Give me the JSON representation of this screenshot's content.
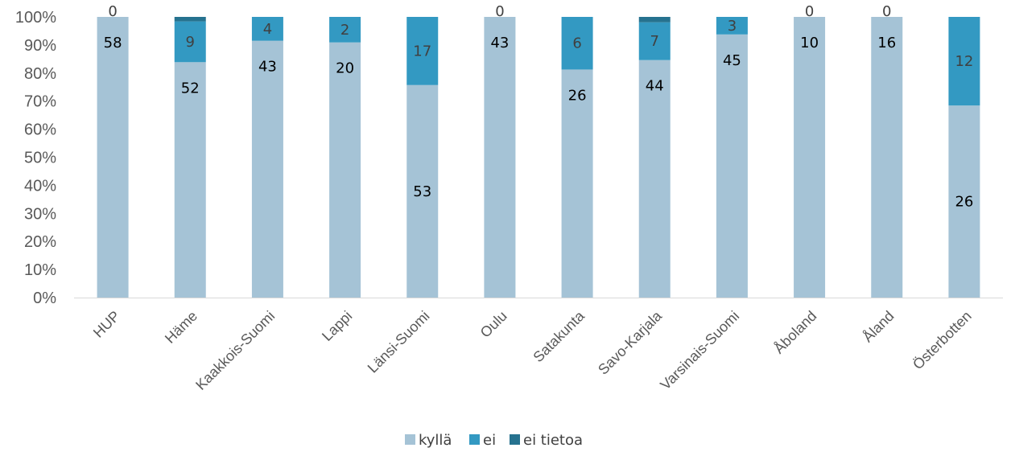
{
  "chart_data": {
    "type": "bar",
    "stacked": "percent",
    "categories": [
      "HUP",
      "Häme",
      "Kaakkois-Suomi",
      "Lappi",
      "Länsi-Suomi",
      "Oulu",
      "Satakunta",
      "Savo-Karjala",
      "Varsinais-Suomi",
      "Åboland",
      "Åland",
      "Österbotten"
    ],
    "series": [
      {
        "name": "kyllä",
        "color": "#a5c3d6",
        "label_color": "#000000",
        "values": [
          58,
          52,
          43,
          20,
          53,
          43,
          26,
          44,
          45,
          10,
          16,
          26
        ]
      },
      {
        "name": "ei",
        "color": "#3399c2",
        "label_color": "#404040",
        "values": [
          0,
          9,
          4,
          2,
          17,
          0,
          6,
          7,
          3,
          0,
          0,
          12
        ]
      },
      {
        "name": "ei tietoa",
        "color": "#26728f",
        "label_color": "#404040",
        "values": [
          0,
          1,
          0,
          0,
          0,
          0,
          0,
          1,
          0,
          0,
          0,
          0
        ]
      }
    ],
    "data_labels": [
      {
        "series": 0,
        "show": [
          true,
          true,
          true,
          true,
          true,
          true,
          true,
          true,
          true,
          true,
          true,
          true
        ]
      },
      {
        "series": 1,
        "show": [
          true,
          true,
          true,
          true,
          true,
          true,
          true,
          true,
          true,
          true,
          true,
          true
        ]
      },
      {
        "series": 2,
        "show": [
          false,
          false,
          false,
          false,
          false,
          false,
          false,
          false,
          false,
          false,
          false,
          false
        ]
      }
    ],
    "y_ticks": [
      "0%",
      "10%",
      "20%",
      "30%",
      "40%",
      "50%",
      "60%",
      "70%",
      "80%",
      "90%",
      "100%"
    ],
    "ylim": [
      0,
      100
    ],
    "grid": false,
    "legend": "bottom-center",
    "title": "",
    "xlabel": "",
    "ylabel": ""
  }
}
